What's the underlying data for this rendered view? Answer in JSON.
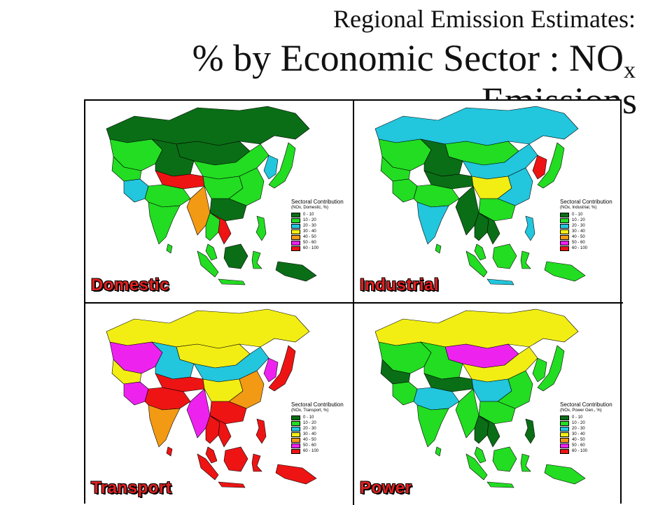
{
  "title": {
    "line1": "Regional Emission Estimates:",
    "line2": "% by Economic Sector : NO",
    "line2_sub": "x",
    "line3": "Emissions"
  },
  "legend_scale": {
    "ranges": [
      "0 - 10",
      "10 - 20",
      "20 - 30",
      "30 - 40",
      "40 - 50",
      "50 - 60",
      "60 - 100"
    ],
    "colors": [
      "#0a6e16",
      "#22dd22",
      "#22c6dd",
      "#f2ee14",
      "#f29a14",
      "#ee22ee",
      "#ee1414"
    ]
  },
  "panels": [
    {
      "label": "Domestic",
      "legend_title": "Sectoral Contribution",
      "legend_subtitle": "(NOx, Domestic, %)",
      "regions": {
        "russia": 0,
        "mongolia": 0,
        "japan": 1,
        "korea": 2,
        "kazakh": 1,
        "westchina": 0,
        "northchina": 1,
        "centralchina": 1,
        "eastchina": 1,
        "southchina": 0,
        "tibet": 6,
        "india_north": 1,
        "india_south": 1,
        "pakistan": 2,
        "afghan": 1,
        "burma": 4,
        "thailand": 1,
        "indochina": 6,
        "malaysia": 1,
        "sumatra": 1,
        "borneo": 0,
        "java": 1,
        "sulawesi": 1,
        "philippines": 1,
        "papua": 0,
        "srilanka": 1,
        "taiwan": 1
      }
    },
    {
      "label": "Industrial",
      "legend_title": "Sectoral Contribution",
      "legend_subtitle": "(NOx, Industrial, %)",
      "regions": {
        "russia": 2,
        "mongolia": 1,
        "japan": 1,
        "korea": 6,
        "kazakh": 1,
        "westchina": 0,
        "northchina": 2,
        "centralchina": 3,
        "eastchina": 2,
        "southchina": 1,
        "tibet": 0,
        "india_north": 1,
        "india_south": 2,
        "pakistan": 1,
        "afghan": 1,
        "burma": 0,
        "thailand": 0,
        "indochina": 0,
        "malaysia": 1,
        "sumatra": 1,
        "borneo": 1,
        "java": 2,
        "sulawesi": 1,
        "philippines": 2,
        "papua": 1,
        "srilanka": 1,
        "taiwan": 1
      }
    },
    {
      "label": "Transport",
      "legend_title": "Sectoral Contribution",
      "legend_subtitle": "(NOx, Transport, %)",
      "regions": {
        "russia": 3,
        "mongolia": 3,
        "japan": 6,
        "korea": 5,
        "kazakh": 5,
        "westchina": 2,
        "northchina": 2,
        "centralchina": 3,
        "eastchina": 4,
        "southchina": 6,
        "tibet": 6,
        "india_north": 6,
        "india_south": 4,
        "pakistan": 5,
        "afghan": 3,
        "burma": 5,
        "thailand": 6,
        "indochina": 6,
        "malaysia": 6,
        "sumatra": 6,
        "borneo": 6,
        "java": 6,
        "sulawesi": 6,
        "philippines": 6,
        "papua": 6,
        "srilanka": 6,
        "taiwan": 6
      }
    },
    {
      "label": "Power",
      "legend_title": "Sectoral Contribution",
      "legend_subtitle": "(NOx, Power Gen., %)",
      "regions": {
        "russia": 3,
        "mongolia": 5,
        "japan": 1,
        "korea": 1,
        "kazakh": 1,
        "westchina": 1,
        "northchina": 3,
        "centralchina": 2,
        "eastchina": 1,
        "southchina": 1,
        "tibet": 0,
        "india_north": 2,
        "india_south": 1,
        "pakistan": 1,
        "afghan": 0,
        "burma": 1,
        "thailand": 0,
        "indochina": 0,
        "malaysia": 1,
        "sumatra": 1,
        "borneo": 1,
        "java": 1,
        "sulawesi": 1,
        "philippines": 0,
        "papua": 1,
        "srilanka": 1,
        "taiwan": 1
      }
    }
  ]
}
